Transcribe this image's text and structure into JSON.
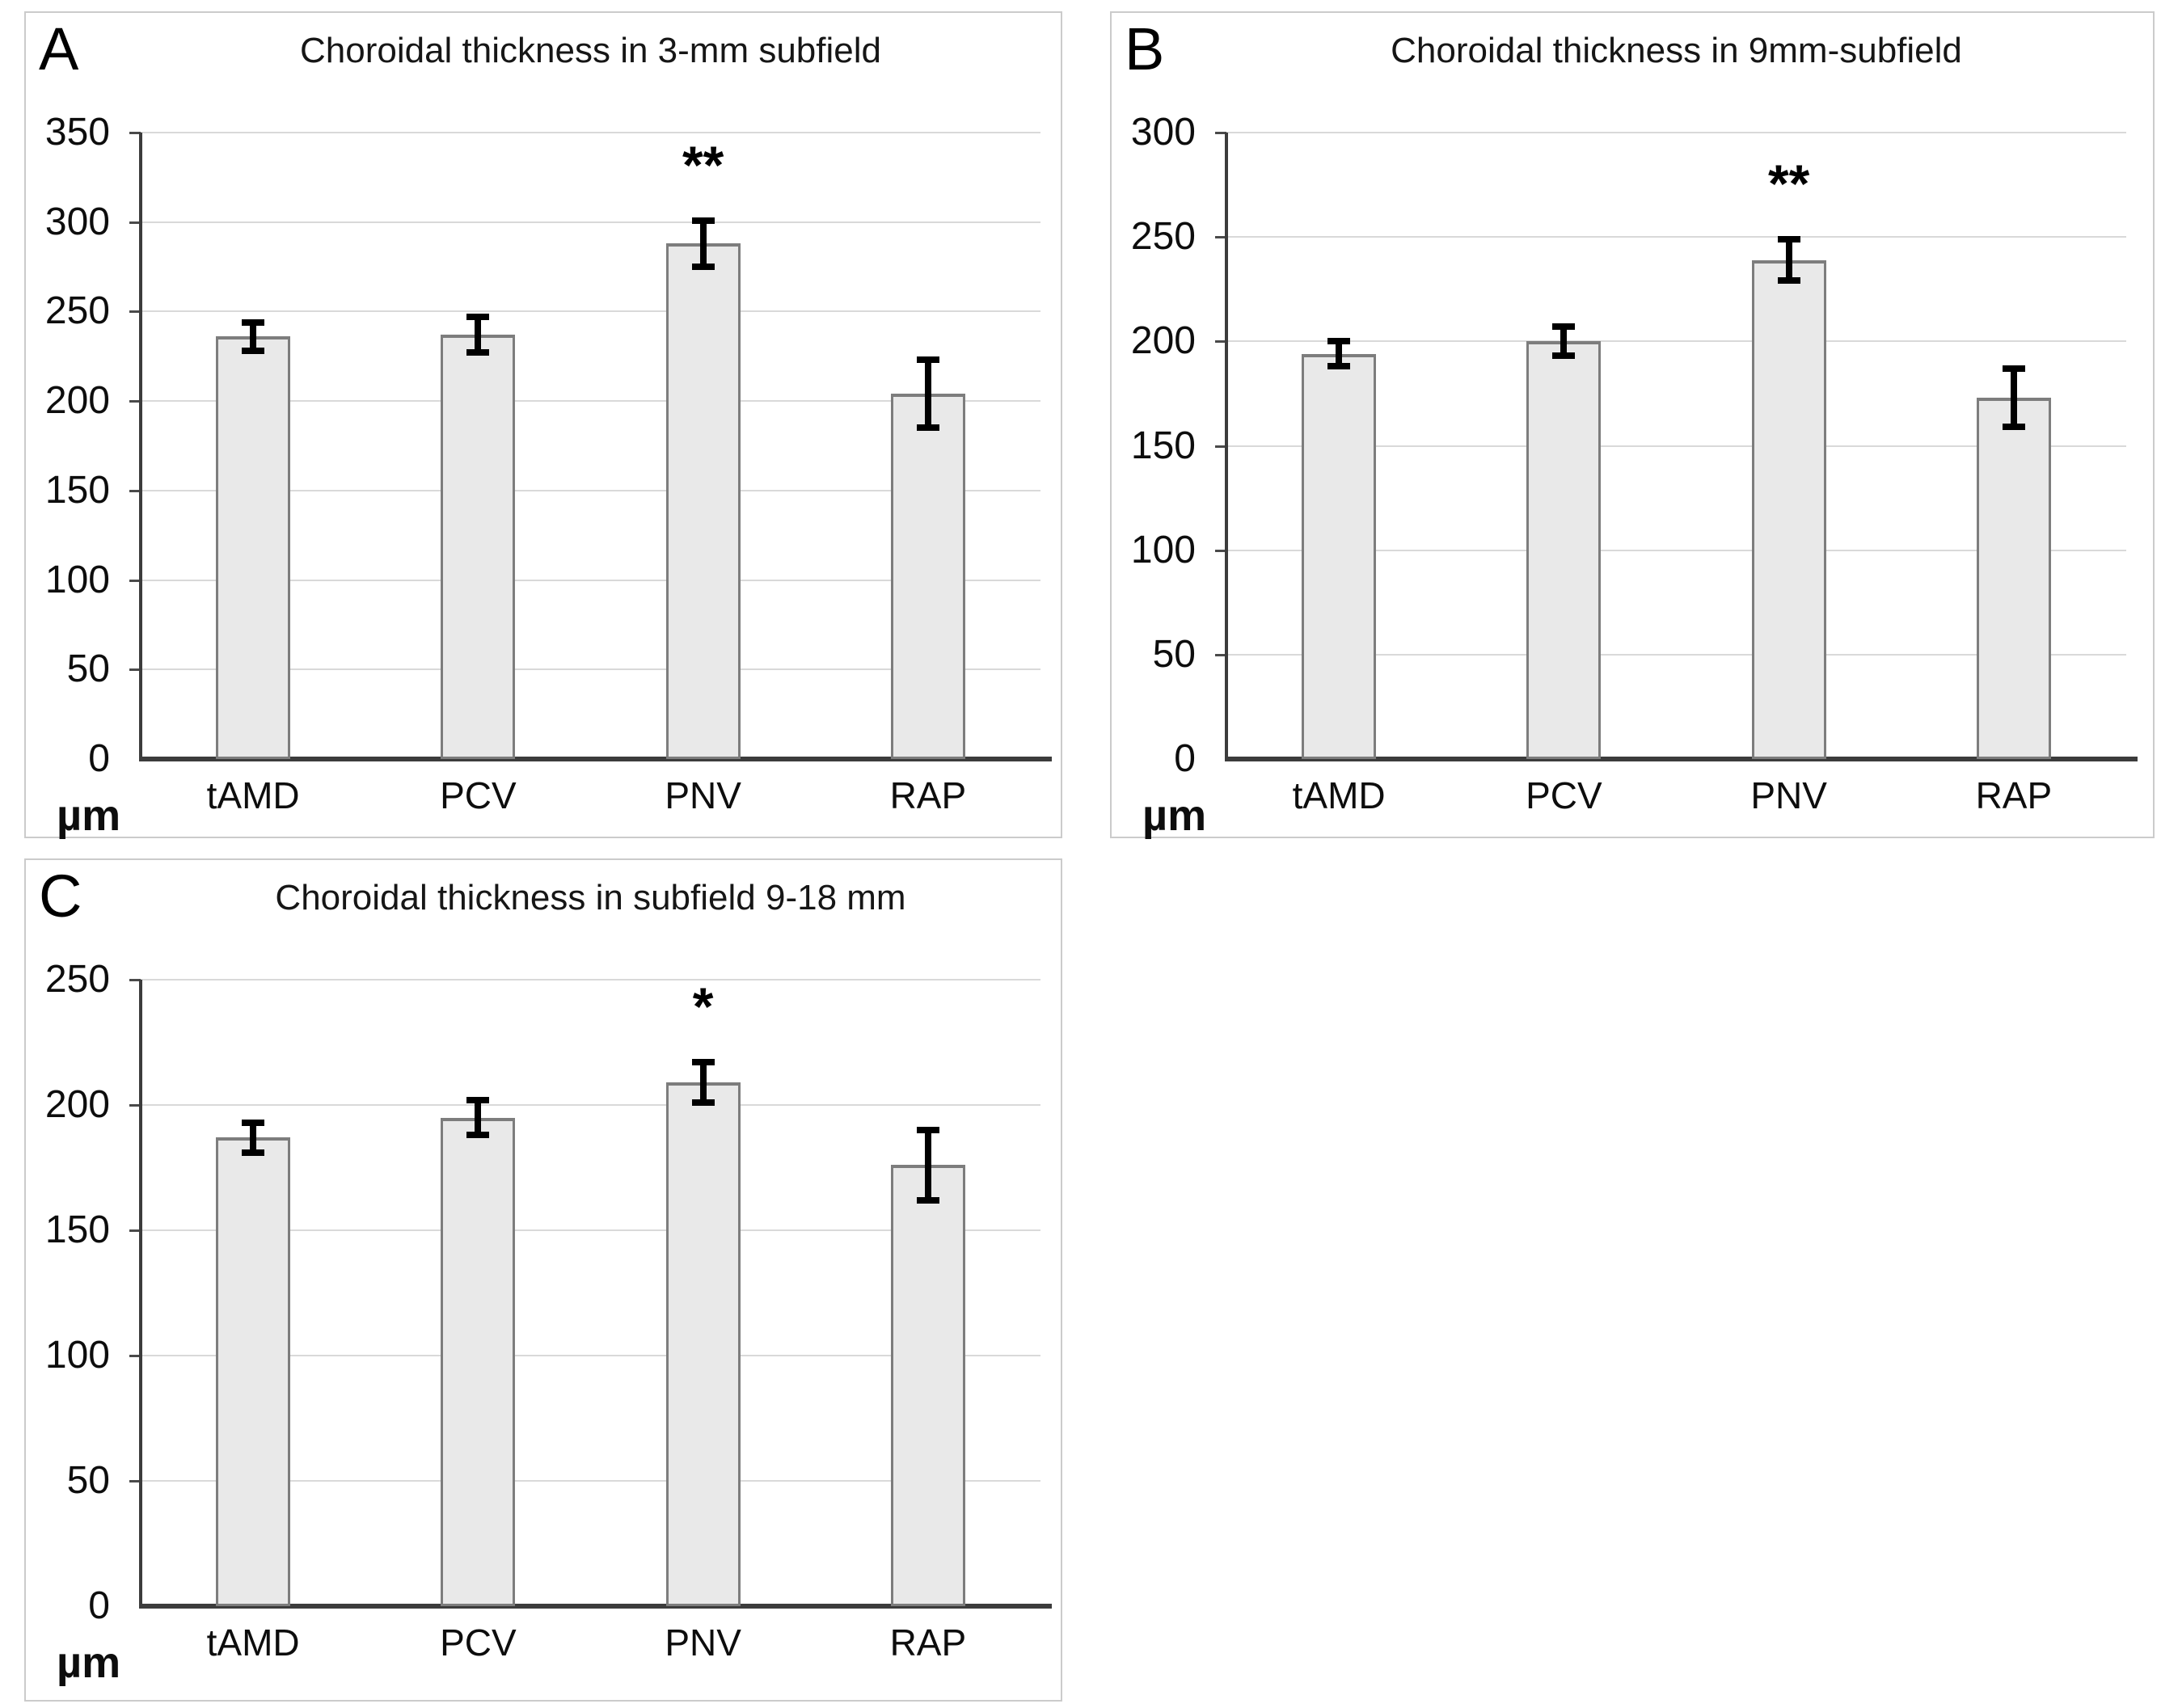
{
  "figure": {
    "background_color": "#ffffff",
    "panel_border_color": "#cbcbcb",
    "gridline_color": "#d9d9d9",
    "axis_color": "#3c3c3c",
    "error_bar_color": "#000000",
    "bar_fill_color": "#e9e9e9",
    "bar_border_color": "#7d7d7d"
  },
  "chart_data": [
    {
      "type": "bar",
      "panel_label": "A",
      "title": "Choroidal thickness in 3-mm subfield",
      "ylabel": "µm",
      "categories": [
        "tAMD",
        "PCV",
        "PNV",
        "RAP"
      ],
      "values": [
        236,
        237,
        288,
        204
      ],
      "errors": [
        8,
        10,
        13,
        19
      ],
      "significance": [
        "",
        "",
        "**",
        ""
      ],
      "ylim": [
        0,
        350
      ],
      "ytick_step": 50,
      "yticks": [
        0,
        50,
        100,
        150,
        200,
        250,
        300,
        350
      ],
      "grid": true,
      "legend": "none"
    },
    {
      "type": "bar",
      "panel_label": "B",
      "title": "Choroidal thickness in 9mm-subfield",
      "ylabel": "µm",
      "categories": [
        "tAMD",
        "PCV",
        "PNV",
        "RAP"
      ],
      "values": [
        194,
        200,
        239,
        173
      ],
      "errors": [
        6,
        7,
        10,
        14
      ],
      "significance": [
        "",
        "",
        "**",
        ""
      ],
      "ylim": [
        0,
        300
      ],
      "ytick_step": 50,
      "yticks": [
        0,
        50,
        100,
        150,
        200,
        250,
        300
      ],
      "grid": true,
      "legend": "none"
    },
    {
      "type": "bar",
      "panel_label": "C",
      "title": "Choroidal thickness in subfield 9-18 mm",
      "ylabel": "µm",
      "categories": [
        "tAMD",
        "PCV",
        "PNV",
        "RAP"
      ],
      "values": [
        187,
        195,
        209,
        176
      ],
      "errors": [
        6,
        7,
        8,
        14
      ],
      "significance": [
        "",
        "",
        "*",
        ""
      ],
      "ylim": [
        0,
        250
      ],
      "ytick_step": 50,
      "yticks": [
        0,
        50,
        100,
        150,
        200,
        250
      ],
      "grid": true,
      "legend": "none"
    }
  ]
}
